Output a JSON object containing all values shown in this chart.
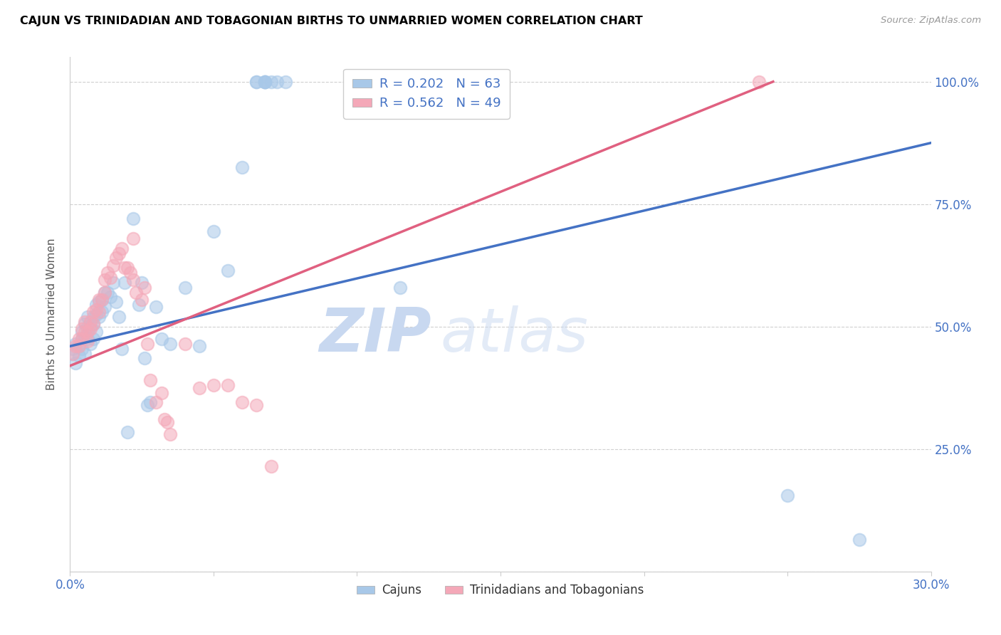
{
  "title": "CAJUN VS TRINIDADIAN AND TOBAGONIAN BIRTHS TO UNMARRIED WOMEN CORRELATION CHART",
  "source": "Source: ZipAtlas.com",
  "ylabel": "Births to Unmarried Women",
  "xlim": [
    0.0,
    0.3
  ],
  "ylim": [
    0.0,
    1.05
  ],
  "xticks": [
    0.0,
    0.05,
    0.1,
    0.15,
    0.2,
    0.25,
    0.3
  ],
  "xticklabels": [
    "0.0%",
    "",
    "",
    "",
    "",
    "",
    "30.0%"
  ],
  "yticks": [
    0.0,
    0.25,
    0.5,
    0.75,
    1.0
  ],
  "yticklabels": [
    "",
    "25.0%",
    "50.0%",
    "75.0%",
    "100.0%"
  ],
  "cajun_R": 0.202,
  "cajun_N": 63,
  "trini_R": 0.562,
  "trini_N": 49,
  "cajun_color": "#a8c8e8",
  "trini_color": "#f4a8b8",
  "cajun_line_color": "#4472c4",
  "trini_line_color": "#e06080",
  "legend_cajun_label": "Cajuns",
  "legend_trini_label": "Trinidadians and Tobagonians",
  "watermark_zip": "ZIP",
  "watermark_atlas": "atlas",
  "cajun_scatter_x": [
    0.001,
    0.001,
    0.002,
    0.002,
    0.003,
    0.003,
    0.004,
    0.004,
    0.004,
    0.005,
    0.005,
    0.005,
    0.006,
    0.006,
    0.006,
    0.007,
    0.007,
    0.008,
    0.008,
    0.008,
    0.009,
    0.009,
    0.009,
    0.01,
    0.01,
    0.011,
    0.011,
    0.012,
    0.012,
    0.013,
    0.014,
    0.015,
    0.016,
    0.017,
    0.018,
    0.019,
    0.02,
    0.022,
    0.024,
    0.025,
    0.026,
    0.027,
    0.028,
    0.03,
    0.032,
    0.035,
    0.04,
    0.045,
    0.05,
    0.055,
    0.06,
    0.065,
    0.065,
    0.068,
    0.068,
    0.068,
    0.068,
    0.07,
    0.072,
    0.075,
    0.115,
    0.25,
    0.275
  ],
  "cajun_scatter_y": [
    0.455,
    0.445,
    0.465,
    0.425,
    0.46,
    0.44,
    0.49,
    0.475,
    0.455,
    0.505,
    0.48,
    0.445,
    0.52,
    0.5,
    0.475,
    0.5,
    0.465,
    0.52,
    0.505,
    0.475,
    0.545,
    0.525,
    0.49,
    0.55,
    0.52,
    0.555,
    0.53,
    0.57,
    0.54,
    0.57,
    0.56,
    0.59,
    0.55,
    0.52,
    0.455,
    0.59,
    0.285,
    0.72,
    0.545,
    0.59,
    0.435,
    0.34,
    0.345,
    0.54,
    0.475,
    0.465,
    0.58,
    0.46,
    0.695,
    0.615,
    0.825,
    1.0,
    1.0,
    1.0,
    1.0,
    1.0,
    1.0,
    1.0,
    1.0,
    1.0,
    0.58,
    0.155,
    0.065
  ],
  "trini_scatter_x": [
    0.001,
    0.002,
    0.003,
    0.003,
    0.004,
    0.004,
    0.005,
    0.005,
    0.006,
    0.006,
    0.007,
    0.007,
    0.008,
    0.008,
    0.009,
    0.01,
    0.01,
    0.011,
    0.012,
    0.012,
    0.013,
    0.014,
    0.015,
    0.016,
    0.017,
    0.018,
    0.019,
    0.02,
    0.021,
    0.022,
    0.022,
    0.023,
    0.025,
    0.026,
    0.027,
    0.028,
    0.03,
    0.032,
    0.033,
    0.034,
    0.035,
    0.04,
    0.045,
    0.05,
    0.055,
    0.06,
    0.065,
    0.07,
    0.24
  ],
  "trini_scatter_y": [
    0.445,
    0.46,
    0.475,
    0.46,
    0.495,
    0.475,
    0.51,
    0.49,
    0.49,
    0.47,
    0.51,
    0.495,
    0.53,
    0.505,
    0.535,
    0.555,
    0.53,
    0.555,
    0.595,
    0.57,
    0.61,
    0.6,
    0.625,
    0.64,
    0.65,
    0.66,
    0.62,
    0.62,
    0.61,
    0.68,
    0.595,
    0.57,
    0.555,
    0.58,
    0.465,
    0.39,
    0.345,
    0.365,
    0.31,
    0.305,
    0.28,
    0.465,
    0.375,
    0.38,
    0.38,
    0.345,
    0.34,
    0.215,
    1.0
  ],
  "cajun_line_x": [
    0.0,
    0.3
  ],
  "cajun_line_y": [
    0.46,
    0.875
  ],
  "trini_line_x": [
    0.0,
    0.245
  ],
  "trini_line_y": [
    0.42,
    1.0
  ],
  "background_color": "#ffffff",
  "grid_color": "#d0d0d0",
  "title_color": "#000000",
  "axis_color": "#4472c4"
}
